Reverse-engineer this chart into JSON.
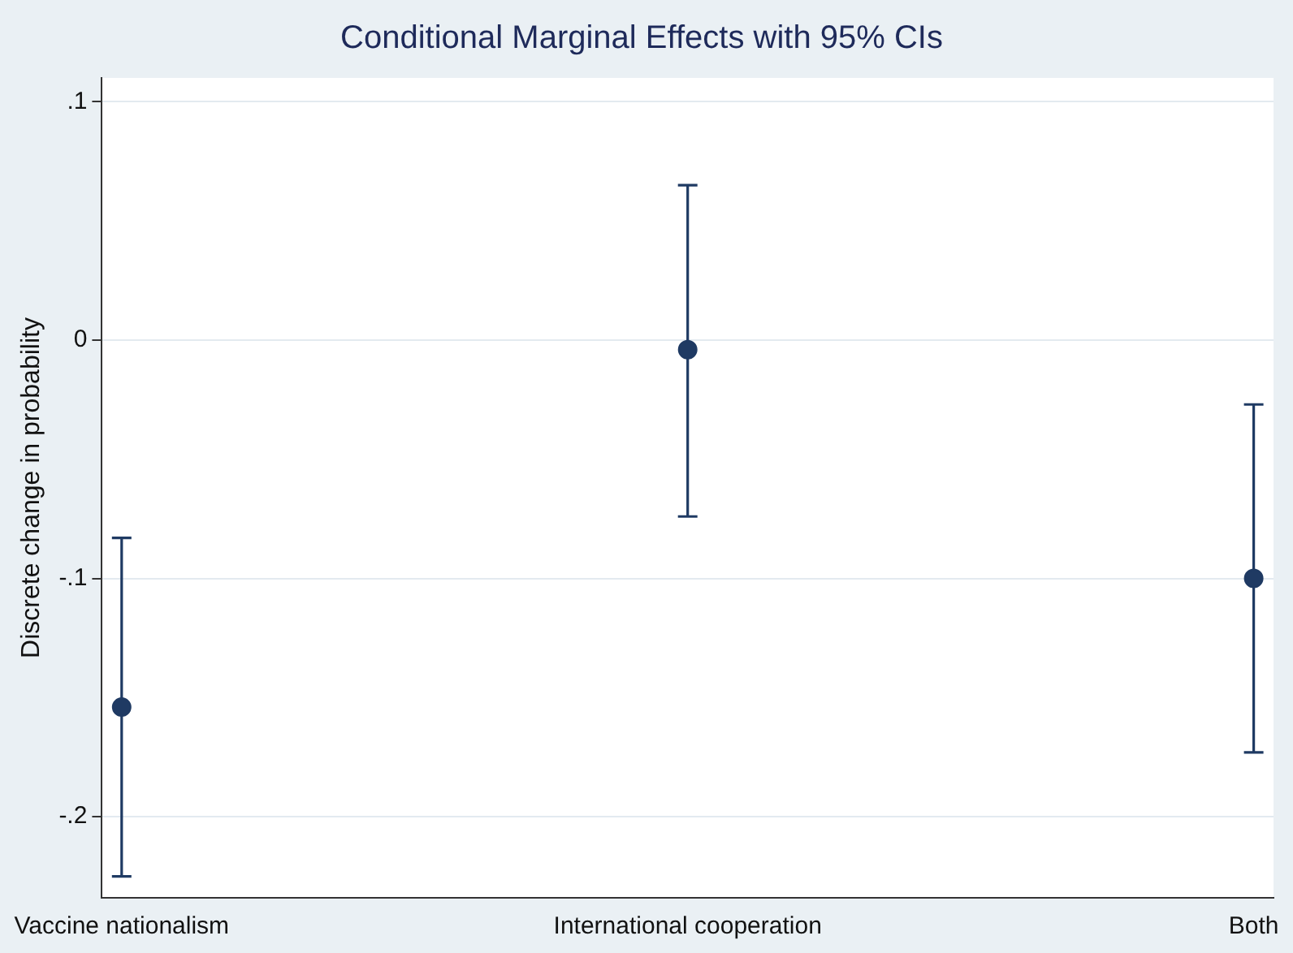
{
  "chart_data": {
    "type": "scatter",
    "title": "Conditional Marginal Effects with 95% CIs",
    "ylabel": "Discrete change in probability",
    "categories": [
      "Vaccine nationalism",
      "International cooperation",
      "Both"
    ],
    "values": [
      -0.154,
      -0.004,
      -0.1
    ],
    "errors": [
      [
        -0.225,
        -0.083
      ],
      [
        -0.074,
        0.065
      ],
      [
        -0.173,
        -0.027
      ]
    ],
    "color": "#1f3a63",
    "marker": "circle",
    "grid": "y",
    "legend": false,
    "ylim": [
      -0.234,
      0.11
    ],
    "yticks": [
      {
        "value": 0.1,
        "label": ".1"
      },
      {
        "value": 0,
        "label": "0"
      },
      {
        "value": -0.1,
        "label": "-.1"
      },
      {
        "value": -0.2,
        "label": "-.2"
      }
    ]
  }
}
